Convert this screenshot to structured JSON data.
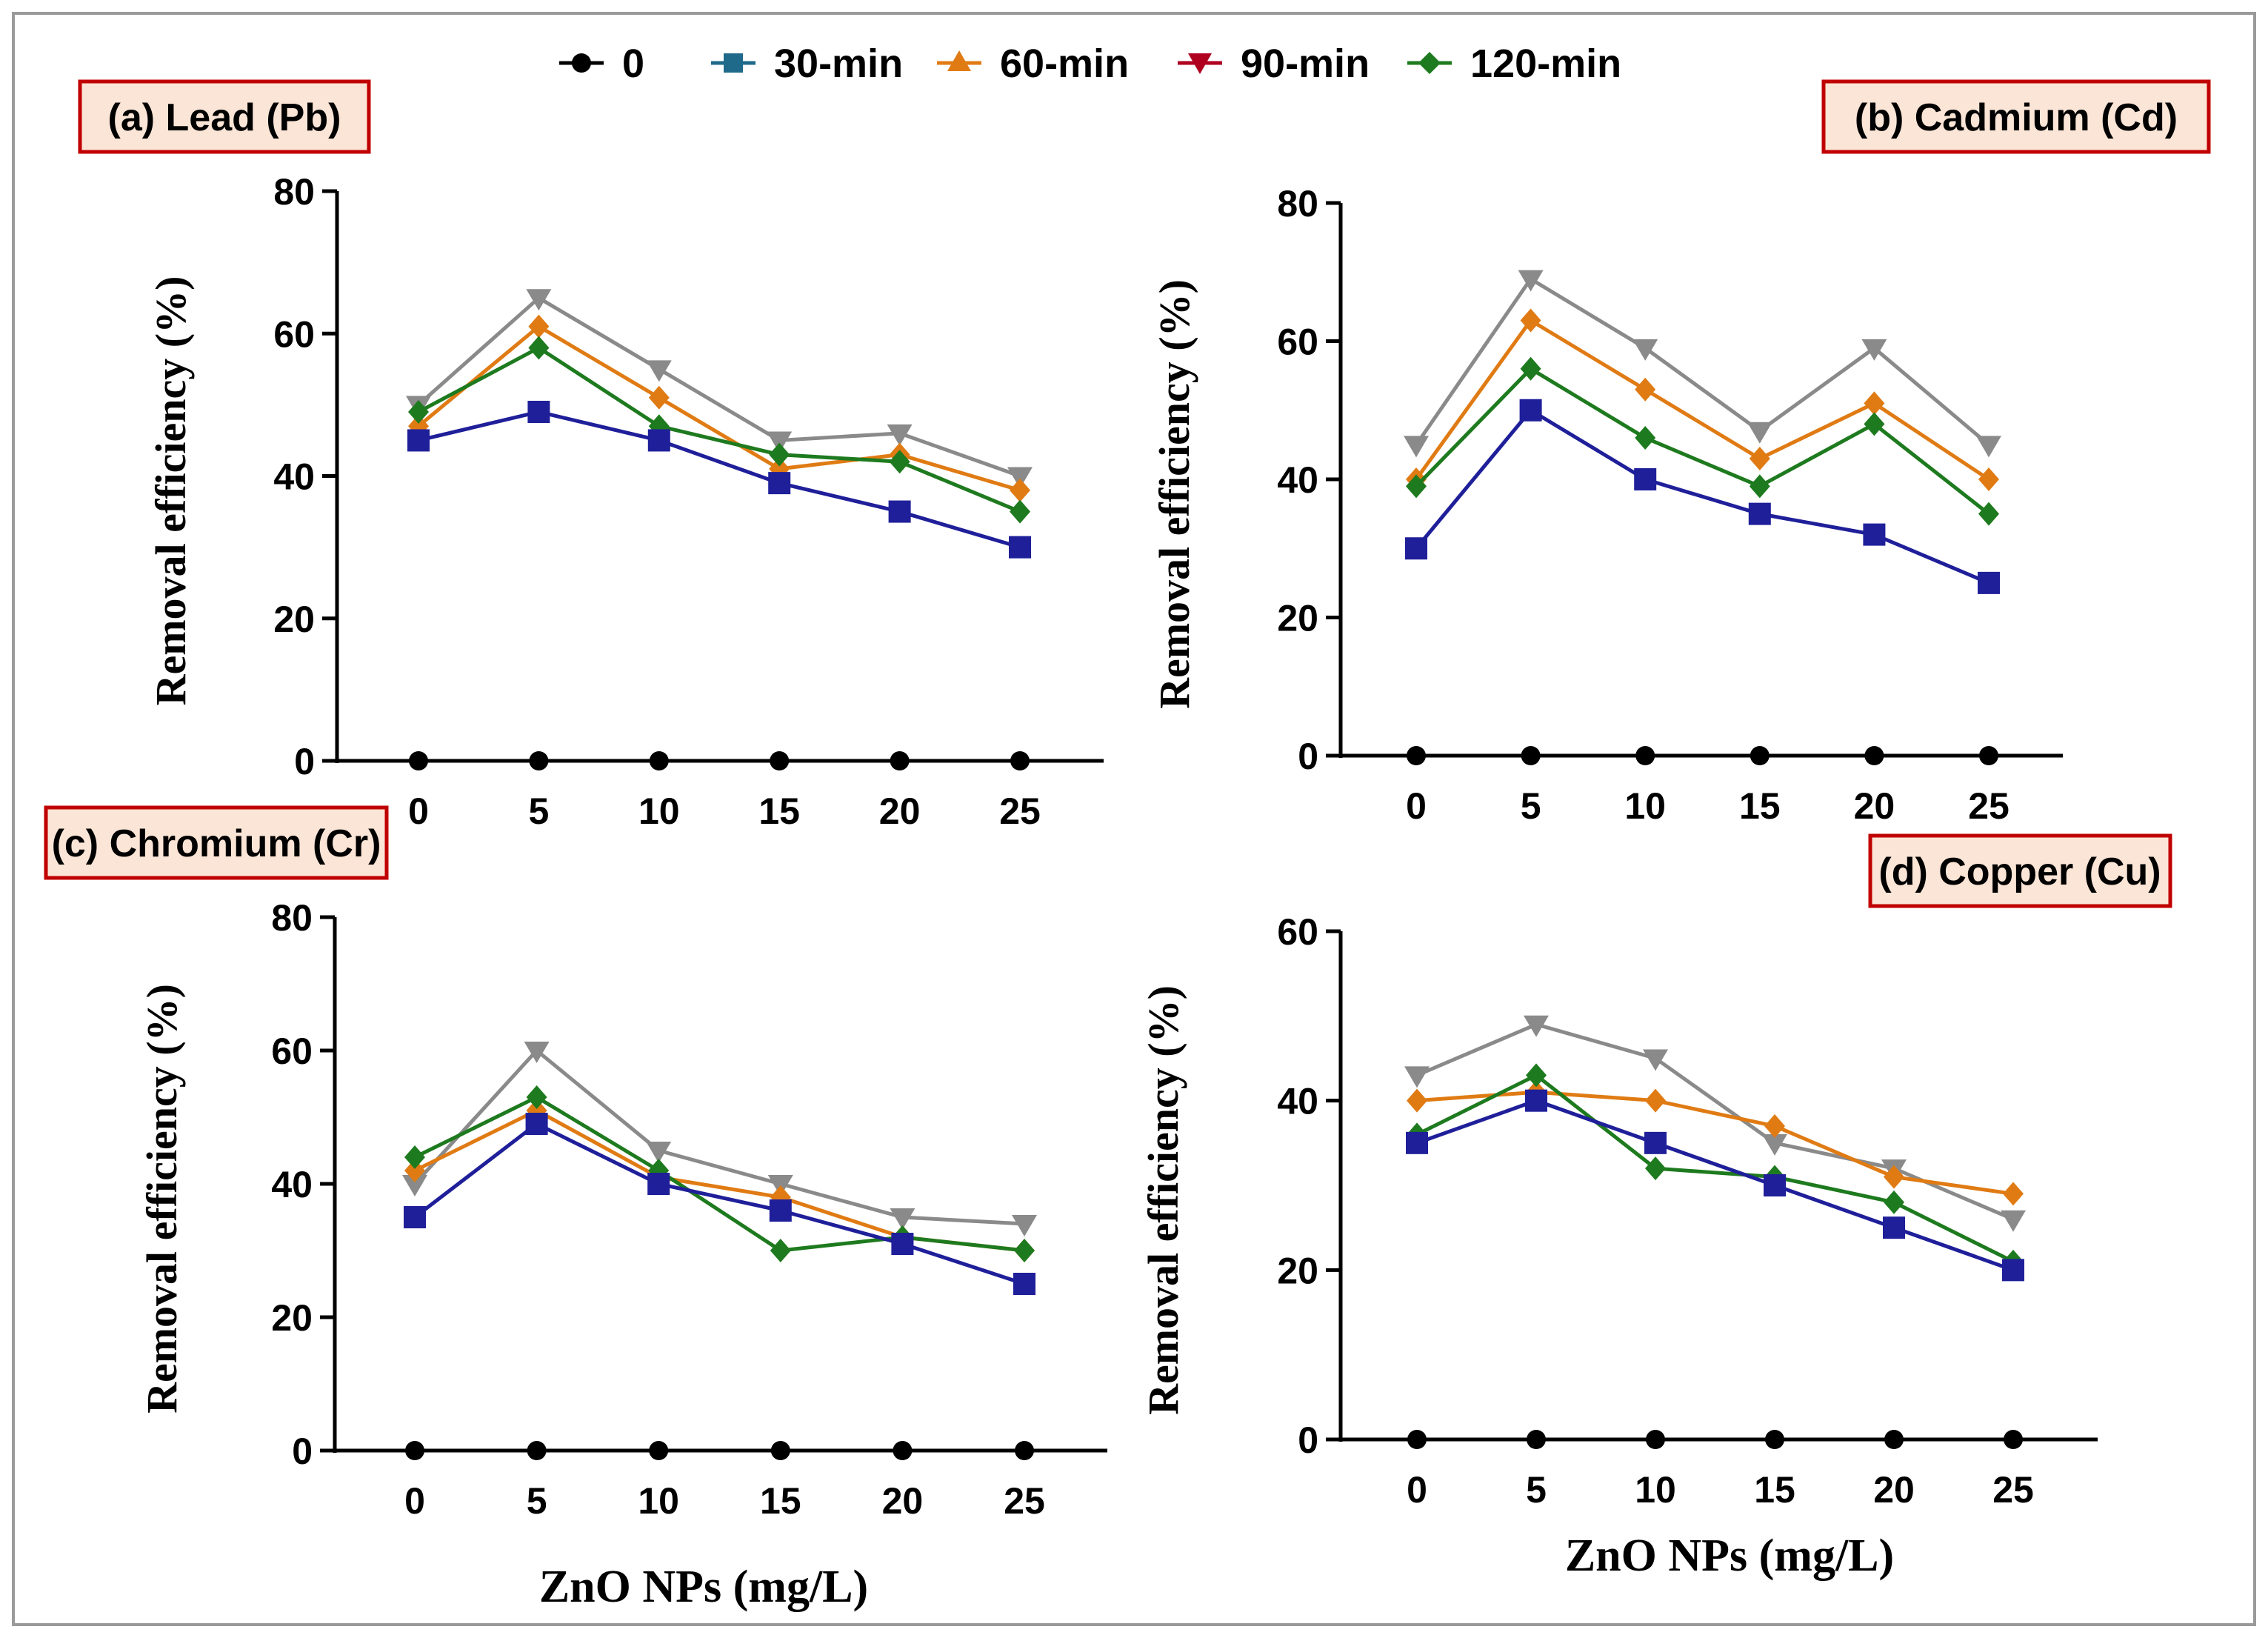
{
  "colors": {
    "series": [
      "#000000",
      "#1f1f9a",
      "#e07b14",
      "#8a8a8a",
      "#1e7a1e"
    ],
    "legend_markers": [
      "#000000",
      "#1f6a8a",
      "#e07b14",
      "#b00020",
      "#1e7a1e"
    ],
    "label_box_border": "#c00000",
    "label_box_fill": "#fbe5d6",
    "frame": "#9a9a9a"
  },
  "legend": {
    "items": [
      {
        "label": "0",
        "marker": "circle"
      },
      {
        "label": "30-min",
        "marker": "square"
      },
      {
        "label": "60-min",
        "marker": "triangle-up"
      },
      {
        "label": "90-min",
        "marker": "triangle-down"
      },
      {
        "label": "120-min",
        "marker": "diamond"
      }
    ]
  },
  "xlabel": "ZnO NPs (mg/L)",
  "chart_data": [
    {
      "type": "line",
      "title": "(a) Lead (Pb)",
      "ylabel": "Removal efficiency (%)",
      "x": [
        0,
        5,
        10,
        15,
        20,
        25
      ],
      "x_ticks": [
        "0",
        "5",
        "10",
        "15",
        "20",
        "25"
      ],
      "ylim": [
        0,
        80
      ],
      "y_ticks": [
        "0",
        "20",
        "40",
        "60",
        "80"
      ],
      "series": [
        {
          "name": "0",
          "marker": "circle",
          "values": [
            0,
            0,
            0,
            0,
            0,
            0
          ]
        },
        {
          "name": "30-min",
          "marker": "square",
          "values": [
            45,
            49,
            45,
            39,
            35,
            30
          ]
        },
        {
          "name": "60-min",
          "marker": "diamond",
          "values": [
            47,
            61,
            51,
            41,
            43,
            38
          ]
        },
        {
          "name": "90-min",
          "marker": "triangle-down",
          "values": [
            50,
            65,
            55,
            45,
            46,
            40
          ]
        },
        {
          "name": "120-min",
          "marker": "diamond",
          "values": [
            49,
            58,
            47,
            43,
            42,
            35
          ]
        }
      ]
    },
    {
      "type": "line",
      "title": "(b) Cadmium (Cd)",
      "ylabel": "Removal efficiency (%)",
      "x": [
        0,
        5,
        10,
        15,
        20,
        25
      ],
      "x_ticks": [
        "0",
        "5",
        "10",
        "15",
        "20",
        "25"
      ],
      "ylim": [
        0,
        80
      ],
      "y_ticks": [
        "0",
        "20",
        "40",
        "60",
        "80"
      ],
      "series": [
        {
          "name": "0",
          "marker": "circle",
          "values": [
            0,
            0,
            0,
            0,
            0,
            0
          ]
        },
        {
          "name": "30-min",
          "marker": "square",
          "values": [
            30,
            50,
            40,
            35,
            32,
            25
          ]
        },
        {
          "name": "60-min",
          "marker": "diamond",
          "values": [
            40,
            63,
            53,
            43,
            51,
            40
          ]
        },
        {
          "name": "90-min",
          "marker": "triangle-down",
          "values": [
            45,
            69,
            59,
            47,
            59,
            45
          ]
        },
        {
          "name": "120-min",
          "marker": "diamond",
          "values": [
            39,
            56,
            46,
            39,
            48,
            35
          ]
        }
      ]
    },
    {
      "type": "line",
      "title": "(c) Chromium (Cr)",
      "ylabel": "Removal efficiency (%)",
      "x": [
        0,
        5,
        10,
        15,
        20,
        25
      ],
      "x_ticks": [
        "0",
        "5",
        "10",
        "15",
        "20",
        "25"
      ],
      "ylim": [
        0,
        80
      ],
      "y_ticks": [
        "0",
        "20",
        "40",
        "60",
        "80"
      ],
      "series": [
        {
          "name": "0",
          "marker": "circle",
          "values": [
            0,
            0,
            0,
            0,
            0,
            0
          ]
        },
        {
          "name": "30-min",
          "marker": "square",
          "values": [
            35,
            49,
            40,
            36,
            31,
            25
          ]
        },
        {
          "name": "60-min",
          "marker": "diamond",
          "values": [
            42,
            51,
            41,
            38,
            32,
            30
          ]
        },
        {
          "name": "90-min",
          "marker": "triangle-down",
          "values": [
            40,
            60,
            45,
            40,
            35,
            34
          ]
        },
        {
          "name": "120-min",
          "marker": "diamond",
          "values": [
            44,
            53,
            42,
            30,
            32,
            30
          ]
        }
      ]
    },
    {
      "type": "line",
      "title": "(d) Copper (Cu)",
      "ylabel": "Removal efficiency (%)",
      "x": [
        0,
        5,
        10,
        15,
        20,
        25
      ],
      "x_ticks": [
        "0",
        "5",
        "10",
        "15",
        "20",
        "25"
      ],
      "ylim": [
        0,
        60
      ],
      "y_ticks": [
        "0",
        "20",
        "40",
        "60"
      ],
      "series": [
        {
          "name": "0",
          "marker": "circle",
          "values": [
            0,
            0,
            0,
            0,
            0,
            0
          ]
        },
        {
          "name": "30-min",
          "marker": "square",
          "values": [
            35,
            40,
            35,
            30,
            25,
            20
          ]
        },
        {
          "name": "60-min",
          "marker": "diamond",
          "values": [
            40,
            41,
            40,
            37,
            31,
            29
          ]
        },
        {
          "name": "90-min",
          "marker": "triangle-down",
          "values": [
            43,
            49,
            45,
            35,
            32,
            26
          ]
        },
        {
          "name": "120-min",
          "marker": "diamond",
          "values": [
            36,
            43,
            32,
            31,
            28,
            21
          ]
        }
      ]
    }
  ]
}
